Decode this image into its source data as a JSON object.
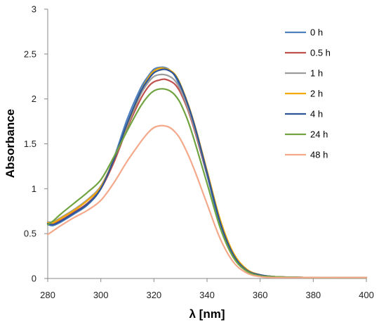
{
  "chart_data": {
    "type": "line",
    "xlabel": "λ [nm]",
    "ylabel": "Absorbance",
    "xlim": [
      280,
      400
    ],
    "ylim": [
      0,
      3
    ],
    "xticks": [
      280,
      300,
      320,
      340,
      360,
      380,
      400
    ],
    "yticks": [
      0,
      0.5,
      1,
      1.5,
      2,
      2.5,
      3
    ],
    "ytick_labels": [
      "0",
      "0.5",
      "1",
      "1.5",
      "2",
      "2.5",
      "3"
    ],
    "grid": false,
    "legend_position": "right",
    "series": [
      {
        "name": "0 h",
        "color": "#4F81BD",
        "x": [
          280,
          282,
          285,
          290,
          295,
          300,
          305,
          310,
          315,
          318,
          320,
          322,
          324,
          326,
          328,
          330,
          333,
          336,
          340,
          345,
          350,
          355,
          360,
          365,
          370,
          380,
          390,
          400
        ],
        "y": [
          0.6,
          0.59,
          0.63,
          0.72,
          0.82,
          1.0,
          1.35,
          1.78,
          2.12,
          2.26,
          2.33,
          2.35,
          2.35,
          2.32,
          2.25,
          2.12,
          1.88,
          1.58,
          1.15,
          0.6,
          0.25,
          0.09,
          0.04,
          0.02,
          0.015,
          0.01,
          0.01,
          0.01
        ]
      },
      {
        "name": "0.5 h",
        "color": "#C0504D",
        "x": [
          280,
          282,
          285,
          290,
          295,
          300,
          305,
          310,
          315,
          318,
          320,
          322,
          324,
          326,
          328,
          330,
          333,
          336,
          340,
          345,
          350,
          355,
          360,
          365,
          370,
          380,
          390,
          400
        ],
        "y": [
          0.62,
          0.61,
          0.65,
          0.74,
          0.84,
          1.0,
          1.3,
          1.68,
          2.0,
          2.14,
          2.19,
          2.21,
          2.22,
          2.2,
          2.16,
          2.07,
          1.86,
          1.58,
          1.17,
          0.63,
          0.27,
          0.1,
          0.04,
          0.02,
          0.015,
          0.01,
          0.01,
          0.01
        ]
      },
      {
        "name": "1 h",
        "color": "#9B9B9B",
        "x": [
          280,
          282,
          285,
          290,
          295,
          300,
          305,
          310,
          315,
          318,
          320,
          322,
          324,
          326,
          328,
          330,
          333,
          336,
          340,
          345,
          350,
          355,
          360,
          365,
          370,
          380,
          390,
          400
        ],
        "y": [
          0.63,
          0.63,
          0.68,
          0.77,
          0.88,
          1.03,
          1.33,
          1.7,
          2.05,
          2.19,
          2.25,
          2.27,
          2.27,
          2.25,
          2.2,
          2.1,
          1.88,
          1.6,
          1.18,
          0.64,
          0.27,
          0.1,
          0.04,
          0.02,
          0.015,
          0.01,
          0.01,
          0.01
        ]
      },
      {
        "name": "2 h",
        "color": "#F2A900",
        "x": [
          280,
          282,
          285,
          290,
          295,
          300,
          305,
          310,
          315,
          318,
          320,
          322,
          324,
          326,
          328,
          330,
          333,
          336,
          340,
          345,
          350,
          355,
          360,
          365,
          370,
          380,
          390,
          400
        ],
        "y": [
          0.62,
          0.62,
          0.67,
          0.76,
          0.87,
          1.02,
          1.33,
          1.72,
          2.08,
          2.24,
          2.31,
          2.34,
          2.34,
          2.32,
          2.27,
          2.16,
          1.93,
          1.64,
          1.2,
          0.65,
          0.28,
          0.1,
          0.04,
          0.02,
          0.015,
          0.01,
          0.01,
          0.01
        ]
      },
      {
        "name": "4 h",
        "color": "#2E5597",
        "x": [
          280,
          282,
          285,
          290,
          295,
          300,
          305,
          310,
          315,
          318,
          320,
          322,
          324,
          326,
          328,
          330,
          333,
          336,
          340,
          345,
          350,
          355,
          360,
          365,
          370,
          380,
          390,
          400
        ],
        "y": [
          0.61,
          0.6,
          0.64,
          0.73,
          0.83,
          1.0,
          1.33,
          1.73,
          2.08,
          2.22,
          2.29,
          2.32,
          2.33,
          2.31,
          2.26,
          2.15,
          1.92,
          1.63,
          1.18,
          0.62,
          0.26,
          0.09,
          0.04,
          0.02,
          0.015,
          0.01,
          0.01,
          0.01
        ]
      },
      {
        "name": "24 h",
        "color": "#71A441",
        "x": [
          280,
          282,
          285,
          290,
          295,
          300,
          305,
          310,
          315,
          318,
          320,
          322,
          324,
          326,
          328,
          330,
          333,
          336,
          340,
          345,
          350,
          355,
          360,
          365,
          370,
          380,
          390,
          400
        ],
        "y": [
          0.6,
          0.64,
          0.72,
          0.84,
          0.96,
          1.1,
          1.36,
          1.65,
          1.92,
          2.04,
          2.09,
          2.11,
          2.11,
          2.09,
          2.04,
          1.95,
          1.74,
          1.46,
          1.06,
          0.56,
          0.23,
          0.08,
          0.03,
          0.02,
          0.015,
          0.01,
          0.01,
          0.01
        ]
      },
      {
        "name": "48 h",
        "color": "#F4A98A",
        "x": [
          280,
          282,
          285,
          290,
          295,
          300,
          305,
          310,
          315,
          318,
          320,
          322,
          324,
          326,
          328,
          330,
          333,
          336,
          340,
          345,
          350,
          355,
          360,
          365,
          370,
          380,
          390,
          400
        ],
        "y": [
          0.49,
          0.53,
          0.59,
          0.68,
          0.76,
          0.87,
          1.07,
          1.31,
          1.52,
          1.63,
          1.68,
          1.7,
          1.7,
          1.68,
          1.63,
          1.55,
          1.37,
          1.15,
          0.83,
          0.44,
          0.18,
          0.06,
          0.02,
          0.01,
          0.01,
          0.01,
          0.01,
          0.01
        ]
      }
    ]
  }
}
